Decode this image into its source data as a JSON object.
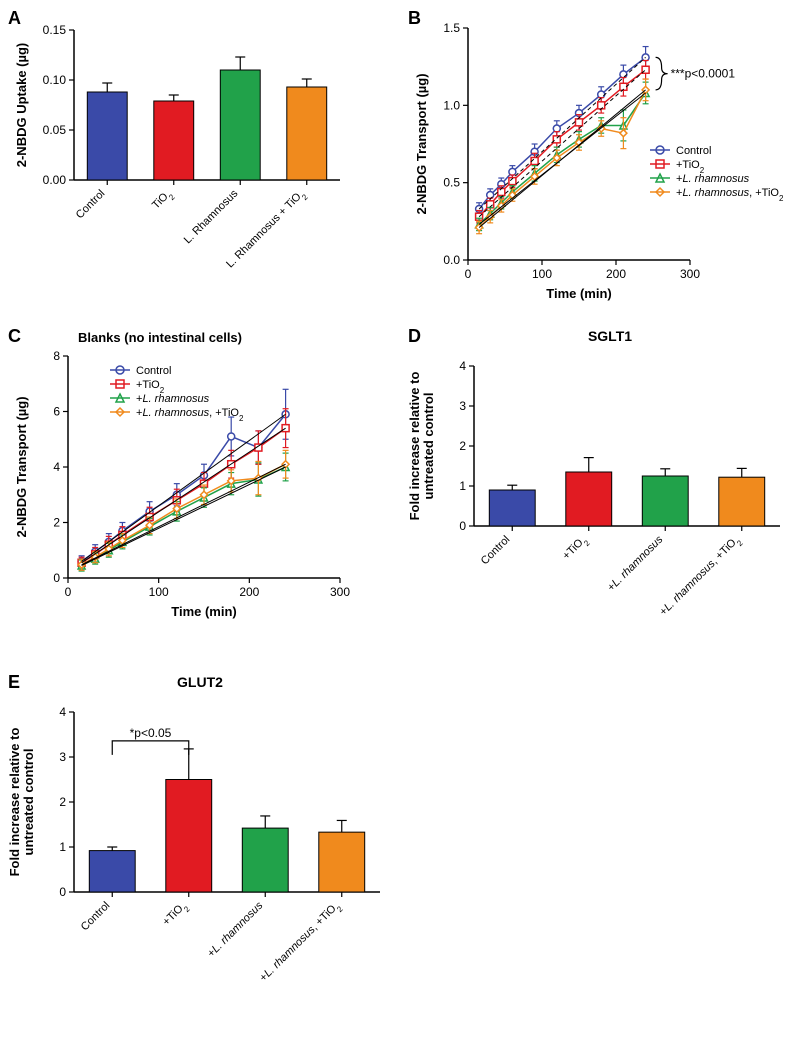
{
  "colors": {
    "control": "#3a4aa8",
    "tio2": "#e11b22",
    "lrham": "#21a24a",
    "lrtio2": "#f08a1d",
    "black": "#000000",
    "white": "#ffffff"
  },
  "A": {
    "label": "A",
    "ylabel": "2-NBDG Uptake (µg)",
    "ylim": [
      0,
      0.15
    ],
    "ytick_step": 0.05,
    "categories_plain": [
      "Control",
      "TiO2",
      "L. Rhamnosus",
      "L. Rhamnosus + TiO2"
    ],
    "values": [
      0.088,
      0.079,
      0.11,
      0.093
    ],
    "errors": [
      0.009,
      0.006,
      0.013,
      0.008
    ],
    "bar_colors": [
      "#3a4aa8",
      "#e11b22",
      "#21a24a",
      "#f08a1d"
    ],
    "bar_width": 0.6
  },
  "B": {
    "label": "B",
    "ylabel": "2-NBDG Transport (µg)",
    "xlabel": "Time (min)",
    "ylim": [
      0,
      1.5
    ],
    "ytick_step": 0.5,
    "xlim": [
      0,
      300
    ],
    "xtick_step": 100,
    "time": [
      15,
      30,
      45,
      60,
      90,
      120,
      150,
      180,
      210,
      240
    ],
    "series": [
      {
        "name": "Control",
        "color": "#3a4aa8",
        "marker": "circle-open",
        "y": [
          0.33,
          0.42,
          0.49,
          0.57,
          0.7,
          0.85,
          0.95,
          1.07,
          1.2,
          1.31
        ],
        "err": [
          0.04,
          0.04,
          0.04,
          0.04,
          0.05,
          0.05,
          0.05,
          0.05,
          0.06,
          0.07
        ]
      },
      {
        "name": "+TiO2",
        "color": "#e11b22",
        "marker": "square-open",
        "y": [
          0.28,
          0.36,
          0.44,
          0.51,
          0.64,
          0.78,
          0.89,
          1.0,
          1.12,
          1.23
        ],
        "err": [
          0.04,
          0.04,
          0.04,
          0.04,
          0.05,
          0.05,
          0.05,
          0.05,
          0.06,
          0.06
        ]
      },
      {
        "name": "+L. rhamnosus",
        "color": "#21a24a",
        "marker": "triangle-open",
        "y": [
          0.23,
          0.3,
          0.37,
          0.44,
          0.56,
          0.68,
          0.78,
          0.87,
          0.87,
          1.08
        ],
        "err": [
          0.04,
          0.04,
          0.04,
          0.04,
          0.05,
          0.05,
          0.05,
          0.05,
          0.1,
          0.07
        ]
      },
      {
        "name": "+L. rhamnosus, +TiO2",
        "color": "#f08a1d",
        "marker": "diamond-open",
        "y": [
          0.21,
          0.28,
          0.35,
          0.42,
          0.54,
          0.66,
          0.76,
          0.85,
          0.82,
          1.1
        ],
        "err": [
          0.04,
          0.04,
          0.04,
          0.04,
          0.05,
          0.05,
          0.05,
          0.05,
          0.1,
          0.07
        ]
      }
    ],
    "sig_label": "***p<0.0001",
    "legend": [
      "Control",
      "+TiO₂",
      "+L. rhamnosus",
      "+L. rhamnosus, +TiO₂"
    ]
  },
  "C": {
    "label": "C",
    "title": "Blanks (no intestinal cells)",
    "ylabel": "2-NBDG Transport (µg)",
    "xlabel": "Time (min)",
    "ylim": [
      0,
      8
    ],
    "ytick_step": 2,
    "xlim": [
      0,
      300
    ],
    "xtick_step": 100,
    "time": [
      15,
      30,
      45,
      60,
      90,
      120,
      150,
      180,
      210,
      240
    ],
    "series": [
      {
        "name": "Control",
        "color": "#3a4aa8",
        "marker": "circle-open",
        "y": [
          0.6,
          0.95,
          1.3,
          1.7,
          2.4,
          3.0,
          3.7,
          5.1,
          4.7,
          5.9
        ],
        "err": [
          0.2,
          0.25,
          0.3,
          0.3,
          0.35,
          0.4,
          0.4,
          0.7,
          0.6,
          0.9
        ]
      },
      {
        "name": "+TiO2",
        "color": "#e11b22",
        "marker": "square-open",
        "y": [
          0.55,
          0.85,
          1.2,
          1.55,
          2.2,
          2.8,
          3.4,
          4.1,
          4.7,
          5.4
        ],
        "err": [
          0.2,
          0.25,
          0.3,
          0.3,
          0.35,
          0.4,
          0.4,
          0.5,
          0.6,
          0.7
        ]
      },
      {
        "name": "+L. rhamnosus",
        "color": "#21a24a",
        "marker": "triangle-open",
        "y": [
          0.45,
          0.7,
          1.0,
          1.3,
          1.85,
          2.4,
          2.9,
          3.4,
          3.55,
          4.0
        ],
        "err": [
          0.2,
          0.2,
          0.25,
          0.25,
          0.3,
          0.35,
          0.35,
          0.4,
          0.6,
          0.5
        ]
      },
      {
        "name": "+L. rhamnosus, +TiO2",
        "color": "#f08a1d",
        "marker": "diamond-open",
        "y": [
          0.48,
          0.75,
          1.05,
          1.35,
          1.9,
          2.5,
          3.0,
          3.5,
          3.6,
          4.1
        ],
        "err": [
          0.2,
          0.2,
          0.25,
          0.25,
          0.3,
          0.35,
          0.35,
          0.4,
          0.6,
          0.5
        ]
      }
    ],
    "legend": [
      "Control",
      "+TiO₂",
      "+L. rhamnosus",
      "+L. rhamnosus, +TiO₂"
    ]
  },
  "D": {
    "label": "D",
    "title": "SGLT1",
    "ylabel_lines": [
      "Fold increase relative to",
      "untreated control"
    ],
    "ylim": [
      0,
      4
    ],
    "ytick_step": 1,
    "categories_plain": [
      "Control",
      "+TiO2",
      "+L. rhamnosus",
      "+L. rhamnosus, +TiO2"
    ],
    "values": [
      0.9,
      1.35,
      1.25,
      1.22
    ],
    "errors": [
      0.12,
      0.36,
      0.18,
      0.22
    ],
    "bar_colors": [
      "#3a4aa8",
      "#e11b22",
      "#21a24a",
      "#f08a1d"
    ],
    "bar_width": 0.6
  },
  "E": {
    "label": "E",
    "title": "GLUT2",
    "ylabel_lines": [
      "Fold increase relative to",
      "untreated control"
    ],
    "ylim": [
      0,
      4
    ],
    "ytick_step": 1,
    "categories_plain": [
      "Control",
      "+TiO2",
      "+L. rhamnosus",
      "+L. rhamnosus, +TiO2"
    ],
    "values": [
      0.92,
      2.5,
      1.42,
      1.33
    ],
    "errors": [
      0.08,
      0.68,
      0.27,
      0.26
    ],
    "bar_colors": [
      "#3a4aa8",
      "#e11b22",
      "#21a24a",
      "#f08a1d"
    ],
    "bar_width": 0.6,
    "sig_label": "*p<0.05"
  }
}
